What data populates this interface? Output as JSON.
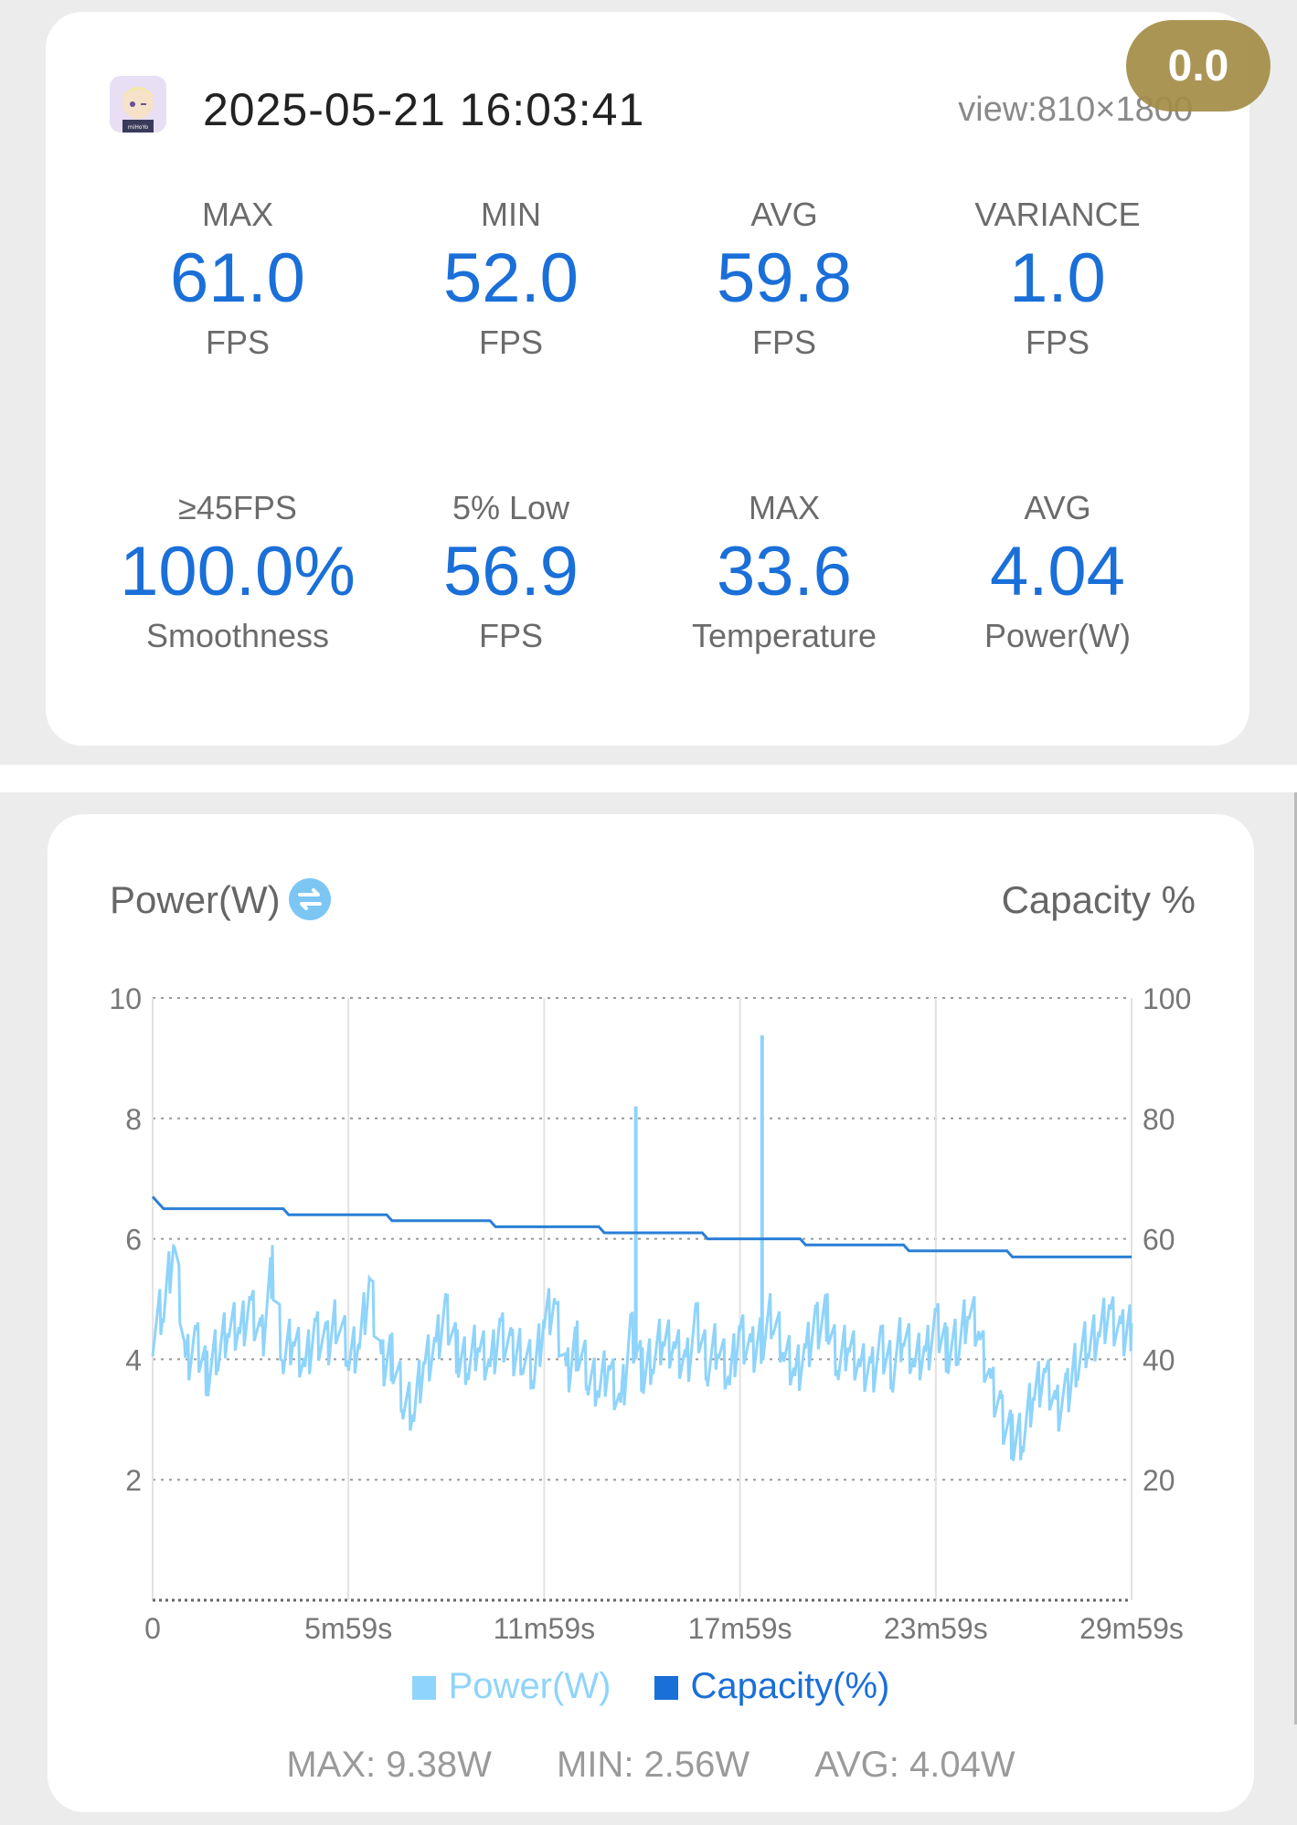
{
  "header": {
    "timestamp": "2025-05-21 16:03:41",
    "view": "view:810×1800",
    "score": "0.0"
  },
  "stats_row1": [
    {
      "label": "MAX",
      "value": "61.0",
      "unit": "FPS"
    },
    {
      "label": "MIN",
      "value": "52.0",
      "unit": "FPS"
    },
    {
      "label": "AVG",
      "value": "59.8",
      "unit": "FPS"
    },
    {
      "label": "VARIANCE",
      "value": "1.0",
      "unit": "FPS"
    }
  ],
  "stats_row2": [
    {
      "label": "≥45FPS",
      "value": "100.0%",
      "unit": "Smoothness"
    },
    {
      "label": "5% Low",
      "value": "56.9",
      "unit": "FPS"
    },
    {
      "label": "MAX",
      "value": "33.6",
      "unit": "Temperature"
    },
    {
      "label": "AVG",
      "value": "4.04",
      "unit": "Power(W)"
    }
  ],
  "chart": {
    "title_left": "Power(W)",
    "title_right": "Capacity %",
    "legend": [
      "Power(W)",
      "Capacity(%)"
    ],
    "summary": {
      "max": "MAX: 9.38W",
      "min": "MIN: 2.56W",
      "avg": "AVG: 4.04W"
    }
  },
  "colors": {
    "power": "#8fd4fa",
    "capacity": "#2a7fd6",
    "value": "#1a6fd8",
    "badge": "#a38c46"
  },
  "chart_data": {
    "type": "line",
    "x_ticks": [
      "0",
      "5m59s",
      "11m59s",
      "17m59s",
      "23m59s",
      "29m59s"
    ],
    "y_left": {
      "label": "Power(W)",
      "ticks": [
        "2",
        "4",
        "6",
        "8",
        "10"
      ],
      "range": [
        0,
        10
      ]
    },
    "y_right": {
      "label": "Capacity %",
      "ticks": [
        "20",
        "40",
        "60",
        "80",
        "100"
      ],
      "range": [
        0,
        100
      ]
    },
    "x_range_seconds": [
      0,
      1799
    ],
    "series": [
      {
        "name": "Power(W)",
        "axis": "left",
        "x": [
          0,
          20,
          40,
          60,
          80,
          100,
          120,
          140,
          160,
          180,
          200,
          220,
          240,
          260,
          280,
          300,
          320,
          340,
          360,
          380,
          400,
          420,
          440,
          460,
          480,
          500,
          520,
          540,
          560,
          580,
          600,
          620,
          640,
          660,
          680,
          700,
          720,
          740,
          760,
          780,
          800,
          820,
          840,
          860,
          880,
          900,
          920,
          940,
          960,
          980,
          1000,
          1020,
          1040,
          1060,
          1080,
          1100,
          1120,
          1140,
          1160,
          1180,
          1200,
          1220,
          1240,
          1260,
          1280,
          1300,
          1320,
          1340,
          1360,
          1380,
          1400,
          1420,
          1440,
          1460,
          1480,
          1500,
          1520,
          1540,
          1560,
          1580,
          1600,
          1620,
          1640,
          1660,
          1680,
          1700,
          1720,
          1740,
          1760,
          1780,
          1799
        ],
        "y": [
          4.5,
          4.9,
          6.0,
          4.0,
          4.3,
          3.8,
          4.2,
          4.6,
          4.5,
          4.9,
          4.3,
          5.5,
          4.1,
          4.4,
          3.9,
          4.5,
          4.2,
          4.8,
          4.1,
          4.3,
          5.3,
          3.9,
          4.1,
          3.4,
          3.2,
          4.0,
          4.2,
          4.8,
          4.1,
          4.0,
          4.3,
          3.9,
          4.5,
          4.1,
          4.2,
          3.8,
          4.7,
          4.9,
          3.7,
          4.3,
          3.8,
          3.6,
          3.9,
          3.2,
          4.5,
          3.8,
          4.1,
          4.4,
          4.2,
          3.9,
          4.6,
          4.0,
          4.3,
          3.7,
          4.5,
          4.1,
          4.4,
          4.8,
          4.2,
          3.8,
          4.1,
          4.6,
          4.7,
          4.0,
          4.3,
          3.9,
          3.8,
          4.2,
          3.9,
          4.5,
          4.0,
          4.1,
          4.6,
          4.2,
          4.3,
          4.9,
          4.4,
          3.6,
          3.1,
          2.7,
          2.8,
          3.5,
          3.8,
          3.2,
          3.4,
          4.1,
          4.3,
          4.5,
          4.8,
          4.4,
          4.6
        ]
      },
      {
        "name": "Capacity(%)",
        "axis": "right",
        "x": [
          0,
          10,
          20,
          60,
          240,
          250,
          430,
          440,
          620,
          630,
          820,
          830,
          1010,
          1020,
          1190,
          1200,
          1380,
          1390,
          1570,
          1580,
          1799
        ],
        "y": [
          67,
          66,
          65,
          65,
          65,
          64,
          64,
          63,
          63,
          62,
          62,
          61,
          61,
          60,
          60,
          59,
          59,
          58,
          58,
          57,
          57
        ]
      }
    ],
    "spikes": [
      {
        "x": 888,
        "y": 8.2
      },
      {
        "x": 1120,
        "y": 9.38
      }
    ]
  }
}
